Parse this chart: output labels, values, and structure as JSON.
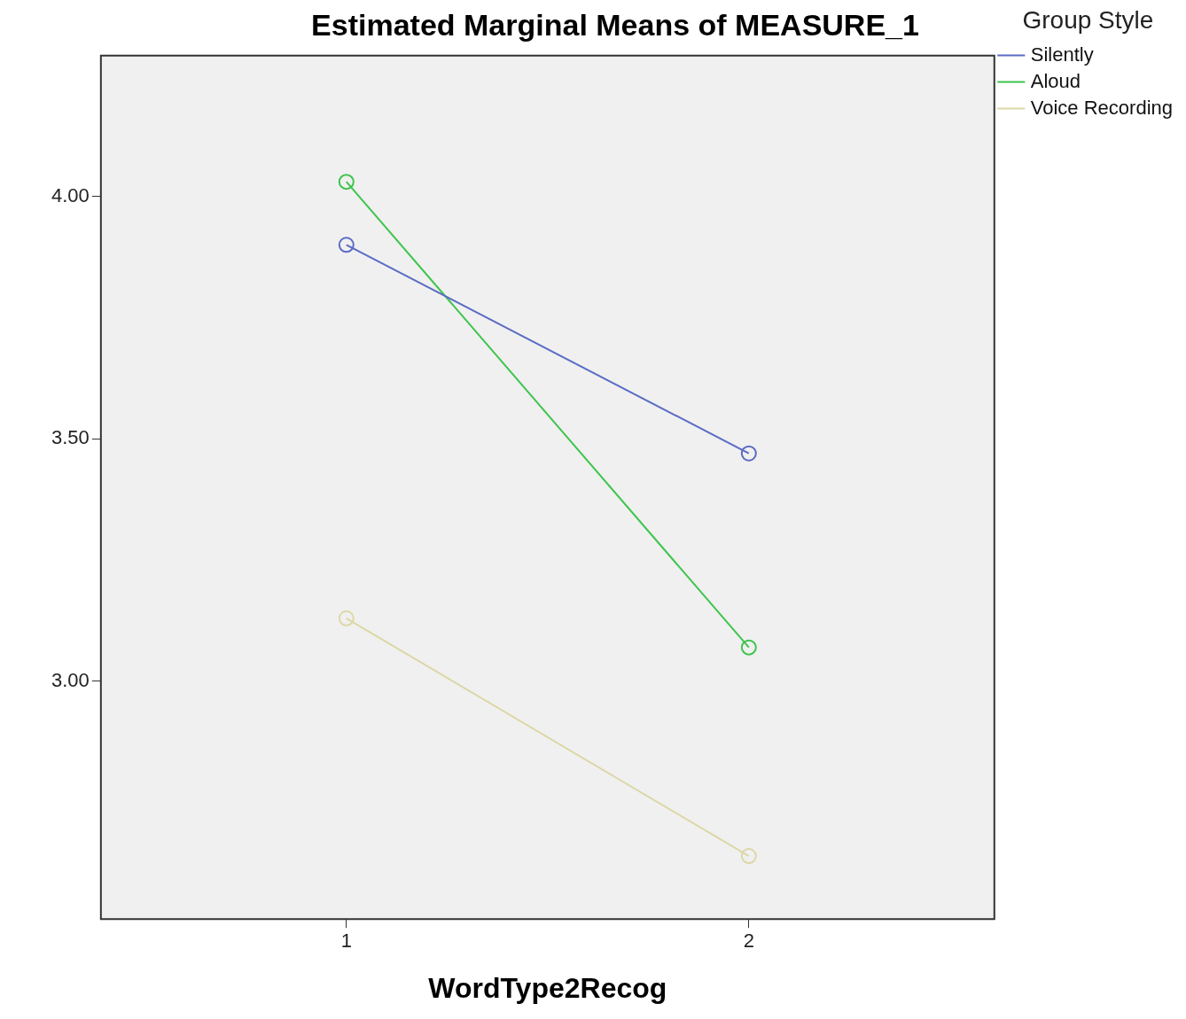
{
  "chart_data": {
    "type": "line",
    "title": "Estimated Marginal Means of MEASURE_1",
    "xlabel": "WordType2Recog",
    "legend_title": "Group Style",
    "x": [
      1,
      2
    ],
    "xlim": [
      0.39,
      2.61
    ],
    "xticks": [
      1,
      2
    ],
    "ylim": [
      2.51,
      4.29
    ],
    "yticks": [
      {
        "value": 3,
        "label": "3.00"
      },
      {
        "value": 3.5,
        "label": "3.50"
      },
      {
        "value": 4,
        "label": "4.00"
      }
    ],
    "series": [
      {
        "name": "Silently",
        "color": "#5a6cc4",
        "values": [
          3.9,
          3.47
        ]
      },
      {
        "name": "Aloud",
        "color": "#3ec44c",
        "values": [
          4.03,
          3.07
        ]
      },
      {
        "name": "Voice Recording",
        "color": "#dcd7a6",
        "values": [
          3.13,
          2.64
        ]
      }
    ],
    "marker": "circle",
    "line_style": "solid",
    "grid": false,
    "legend": "top right"
  }
}
